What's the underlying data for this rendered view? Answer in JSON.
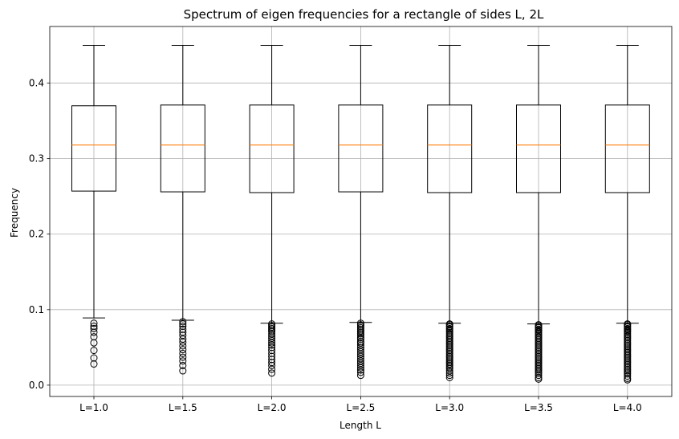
{
  "chart_data": {
    "type": "boxplot",
    "title": "Spectrum of eigen frequencies for a rectangle of sides L, 2L",
    "xlabel": "Length L",
    "ylabel": "Frequency",
    "ylim": [
      -0.015,
      0.475
    ],
    "yticks": [
      0.0,
      0.1,
      0.2,
      0.3,
      0.4
    ],
    "ytick_labels": [
      "0.0",
      "0.1",
      "0.2",
      "0.3",
      "0.4"
    ],
    "grid": true,
    "colors": {
      "median": "#ff7f0e",
      "box": "#000000",
      "grid": "#b0b0b0"
    },
    "categories": [
      "L=1.0",
      "L=1.5",
      "L=2.0",
      "L=2.5",
      "L=3.0",
      "L=3.5",
      "L=4.0"
    ],
    "boxes": [
      {
        "label": "L=1.0",
        "whislo": 0.089,
        "q1": 0.257,
        "med": 0.318,
        "q3": 0.37,
        "whishi": 0.45,
        "fliers": [
          0.082,
          0.078,
          0.075,
          0.07,
          0.064,
          0.056,
          0.046,
          0.036,
          0.028
        ]
      },
      {
        "label": "L=1.5",
        "whislo": 0.086,
        "q1": 0.256,
        "med": 0.318,
        "q3": 0.371,
        "whishi": 0.45,
        "fliers": [
          0.084,
          0.081,
          0.078,
          0.074,
          0.07,
          0.066,
          0.061,
          0.057,
          0.052,
          0.047,
          0.042,
          0.037,
          0.032,
          0.026,
          0.019
        ]
      },
      {
        "label": "L=2.0",
        "whislo": 0.082,
        "q1": 0.255,
        "med": 0.318,
        "q3": 0.371,
        "whishi": 0.45,
        "fliers": [
          0.081,
          0.079,
          0.077,
          0.075,
          0.073,
          0.071,
          0.068,
          0.065,
          0.062,
          0.059,
          0.056,
          0.053,
          0.05,
          0.046,
          0.042,
          0.038,
          0.034,
          0.03,
          0.026,
          0.021,
          0.016
        ]
      },
      {
        "label": "L=2.5",
        "whislo": 0.083,
        "q1": 0.256,
        "med": 0.318,
        "q3": 0.371,
        "whishi": 0.45,
        "fliers": [
          0.082,
          0.08,
          0.078,
          0.076,
          0.074,
          0.072,
          0.07,
          0.068,
          0.066,
          0.063,
          0.061,
          0.058,
          0.056,
          0.053,
          0.05,
          0.047,
          0.044,
          0.041,
          0.038,
          0.035,
          0.032,
          0.029,
          0.026,
          0.023,
          0.02,
          0.017,
          0.013
        ]
      },
      {
        "label": "L=3.0",
        "whislo": 0.082,
        "q1": 0.255,
        "med": 0.318,
        "q3": 0.371,
        "whishi": 0.45,
        "fliers": [
          0.081,
          0.08,
          0.078,
          0.077,
          0.075,
          0.074,
          0.072,
          0.07,
          0.068,
          0.066,
          0.064,
          0.062,
          0.06,
          0.058,
          0.056,
          0.054,
          0.052,
          0.05,
          0.048,
          0.046,
          0.044,
          0.042,
          0.04,
          0.038,
          0.036,
          0.034,
          0.032,
          0.03,
          0.028,
          0.026,
          0.024,
          0.022,
          0.019,
          0.016,
          0.013,
          0.01
        ]
      },
      {
        "label": "L=3.5",
        "whislo": 0.081,
        "q1": 0.255,
        "med": 0.318,
        "q3": 0.371,
        "whishi": 0.45,
        "fliers": [
          0.08,
          0.079,
          0.077,
          0.076,
          0.074,
          0.073,
          0.071,
          0.07,
          0.068,
          0.066,
          0.064,
          0.062,
          0.06,
          0.058,
          0.056,
          0.054,
          0.052,
          0.05,
          0.048,
          0.046,
          0.044,
          0.042,
          0.04,
          0.038,
          0.036,
          0.034,
          0.032,
          0.03,
          0.028,
          0.026,
          0.024,
          0.022,
          0.02,
          0.018,
          0.016,
          0.013,
          0.01,
          0.008
        ]
      },
      {
        "label": "L=4.0",
        "whislo": 0.082,
        "q1": 0.255,
        "med": 0.318,
        "q3": 0.371,
        "whishi": 0.45,
        "fliers": [
          0.081,
          0.08,
          0.078,
          0.077,
          0.075,
          0.074,
          0.072,
          0.071,
          0.069,
          0.067,
          0.065,
          0.063,
          0.061,
          0.059,
          0.057,
          0.055,
          0.053,
          0.051,
          0.049,
          0.047,
          0.045,
          0.043,
          0.041,
          0.039,
          0.037,
          0.035,
          0.033,
          0.031,
          0.029,
          0.027,
          0.025,
          0.023,
          0.021,
          0.019,
          0.017,
          0.015,
          0.012,
          0.009,
          0.007
        ]
      }
    ]
  }
}
